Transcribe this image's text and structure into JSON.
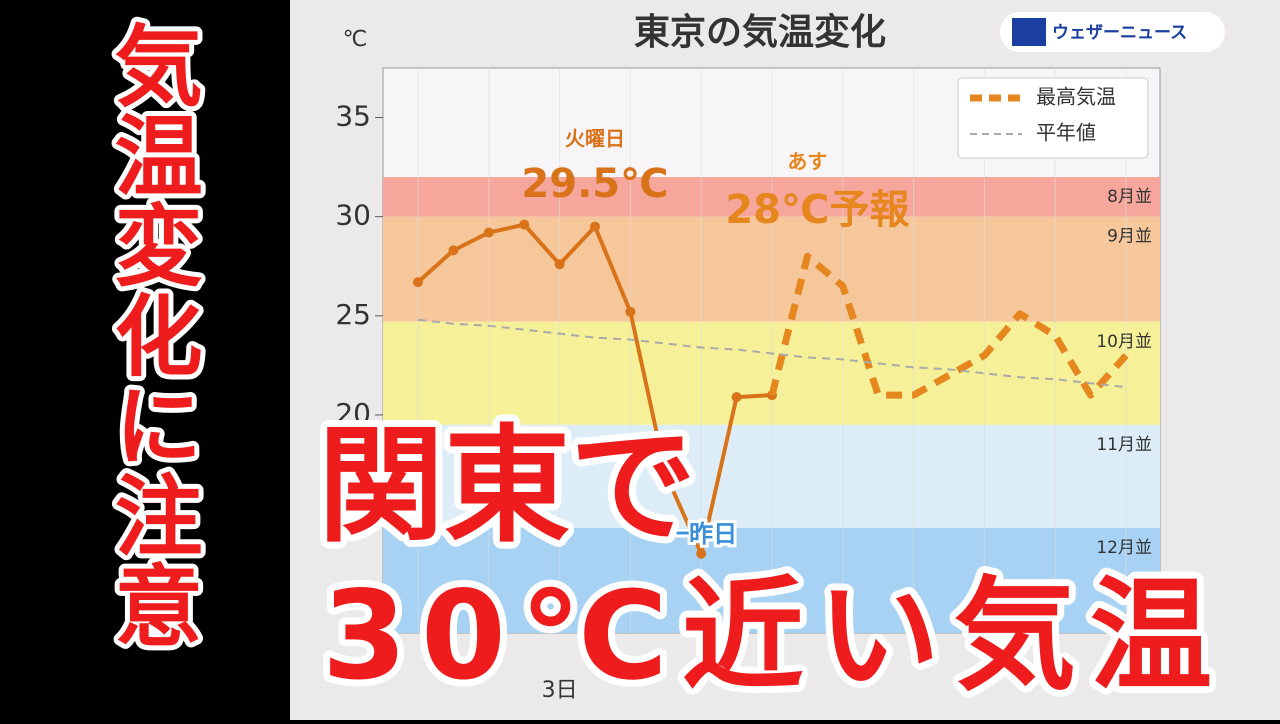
{
  "side_title": "気温変化に注意",
  "headline": [
    "関東で",
    "30℃近い気温"
  ],
  "logo": "ウェザーニュース",
  "chart_data": {
    "type": "line",
    "title": "東京の気温変化",
    "y_unit": "℃",
    "categories": [
      null,
      null,
      null,
      null,
      "3日",
      null,
      null,
      null,
      null,
      null,
      null,
      null,
      null,
      null,
      null,
      null,
      null,
      null,
      null,
      null,
      null
    ],
    "series": [
      {
        "color": "#d9731a",
        "style": "solid",
        "values": [
          26.7,
          28.3,
          29.2,
          29.6,
          27.6,
          29.5,
          25.2,
          17,
          13,
          20.9,
          21.0,
          null,
          null,
          null,
          null,
          null,
          null,
          null,
          null,
          null,
          null
        ]
      },
      {
        "name": "最高気温",
        "color": "#e5861f",
        "style": "dashed",
        "values": [
          null,
          null,
          null,
          null,
          null,
          null,
          null,
          null,
          null,
          null,
          21.0,
          28.0,
          26.5,
          21.0,
          21.0,
          22.0,
          23.0,
          25.1,
          24.0,
          21.0,
          23.0
        ]
      },
      {
        "name": "平年値",
        "color": "#aaaaaa",
        "style": "thin-dashed",
        "values": [
          24.8,
          24.6,
          24.5,
          24.3,
          24.1,
          23.9,
          23.8,
          23.6,
          23.4,
          23.3,
          23.1,
          22.9,
          22.8,
          22.6,
          22.4,
          22.3,
          22.1,
          21.9,
          21.8,
          21.6,
          21.4
        ]
      }
    ],
    "bands": [
      {
        "label": "8月並",
        "from": 30,
        "to": 32,
        "color": "#f6a69a"
      },
      {
        "label": "9月並",
        "from": 24.7,
        "to": 30,
        "color": "#f6c79a"
      },
      {
        "label": "10月並",
        "from": 19.5,
        "to": 24.7,
        "color": "#f6f199"
      },
      {
        "label": "11月並",
        "from": 14.3,
        "to": 19.5,
        "color": "#dcedf8"
      },
      {
        "label": "12月並",
        "from": 9,
        "to": 14.3,
        "color": "#a7d2f4"
      }
    ],
    "annotations": [
      {
        "text": "火曜日",
        "index": 5,
        "color": "#d9731a"
      },
      {
        "text": "29.5℃",
        "index": 5,
        "color": "#d9731a"
      },
      {
        "text": "あす",
        "index": 11,
        "color": "#e5861f"
      },
      {
        "text": "28℃予報",
        "index": 11,
        "color": "#e5861f"
      },
      {
        "text": "一昨日",
        "index": 8,
        "color": "#3a8fd8"
      }
    ],
    "ylim": [
      9,
      37.5
    ],
    "yticks": [
      20,
      25,
      30,
      35
    ],
    "grid": true,
    "legend": "upper right"
  }
}
